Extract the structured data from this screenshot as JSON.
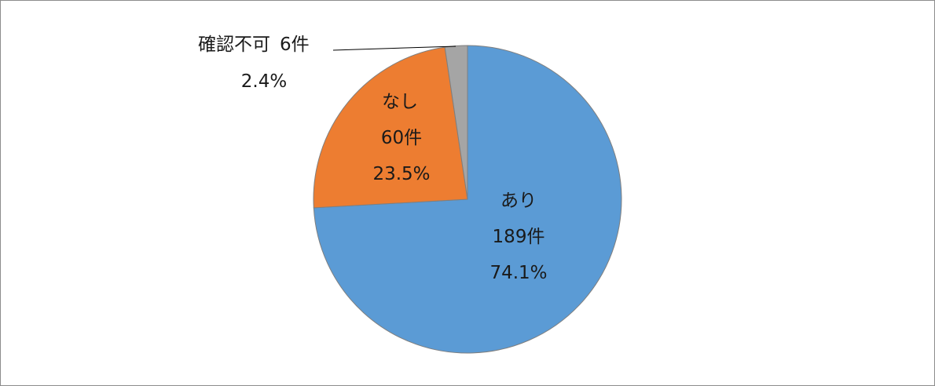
{
  "chart_data": {
    "type": "pie",
    "start_angle_deg": 0,
    "direction": "clockwise",
    "slices": [
      {
        "category": "あり",
        "count_label": "189件",
        "percent_label": "74.1%",
        "value": 189,
        "percent": 74.1,
        "color": "#5B9BD5"
      },
      {
        "category": "なし",
        "count_label": "60件",
        "percent_label": "23.5%",
        "value": 60,
        "percent": 23.5,
        "color": "#ED7D31"
      },
      {
        "category": "確認不可",
        "count_label": "6件",
        "percent_label": "2.4%",
        "value": 6,
        "percent": 2.4,
        "color": "#A5A5A5"
      }
    ],
    "slice_border_color": "#7f7f7f",
    "legend": "none",
    "title": ""
  }
}
